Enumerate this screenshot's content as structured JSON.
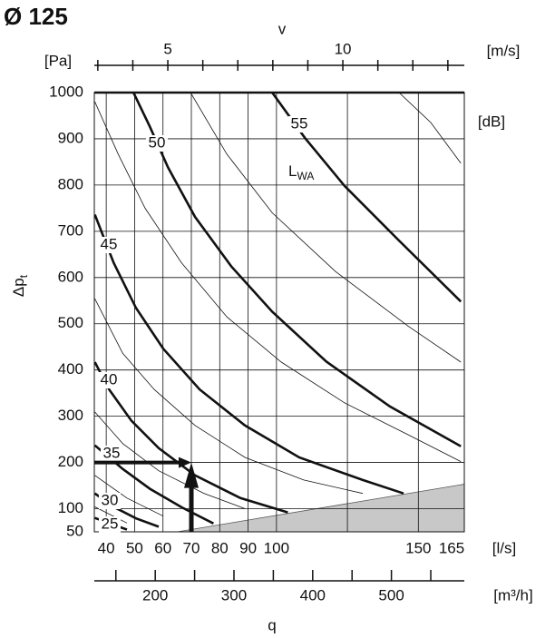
{
  "title": "Ø 125",
  "chart_data": {
    "type": "line",
    "y_unit": "[Pa]",
    "y_label": {
      "main": "Δp",
      "sub": "t"
    },
    "ylim": [
      50,
      1000
    ],
    "yticks": [
      50,
      100,
      200,
      300,
      400,
      500,
      600,
      700,
      800,
      900,
      1000
    ],
    "x_unit": "[l/s]",
    "xlim": [
      35.8,
      166.2
    ],
    "xticks": [
      40,
      50,
      60,
      70,
      80,
      90,
      100,
      150,
      165
    ],
    "x_grid": [
      40,
      50,
      60,
      70,
      80,
      90,
      100,
      125,
      150
    ],
    "grid": true,
    "top_axis": {
      "label": "v",
      "unit": "[m/s]",
      "xlim": [
        2.9,
        13.47
      ],
      "ticks": [
        3,
        4,
        5,
        6,
        7,
        8,
        9,
        10,
        11,
        12,
        13
      ],
      "tick_labels": [
        5,
        10
      ]
    },
    "bottom_axis2": {
      "label": "q",
      "unit": "[m³/h]",
      "xlim": [
        122.6,
        592.6
      ],
      "ticks": [
        150,
        200,
        250,
        300,
        350,
        400,
        450,
        500,
        550
      ],
      "tick_labels": [
        200,
        300,
        400,
        500
      ]
    },
    "series_unit": "[dB]",
    "series_label": {
      "main": "L",
      "sub": "WA"
    },
    "color": "#111111",
    "series": [
      {
        "name": "25",
        "x": [
          36,
          42.6,
          47.3
        ],
        "y": [
          80,
          65,
          55
        ]
      },
      {
        "name": "30",
        "x": [
          36,
          42.6,
          50.5,
          58.5
        ],
        "y": [
          133,
          104,
          79,
          61
        ]
      },
      {
        "name": "35",
        "x": [
          36,
          45.8,
          55.4,
          66.6,
          77.8
        ],
        "y": [
          237,
          186,
          143,
          103,
          68
        ]
      },
      {
        "name": "40",
        "x": [
          36,
          41,
          48.9,
          58.5,
          71.3,
          87.3,
          104
        ],
        "y": [
          417,
          358,
          290,
          231,
          172,
          123,
          92
        ]
      },
      {
        "name": "45",
        "x": [
          36,
          42.6,
          50.5,
          60.1,
          72.9,
          88.9,
          108,
          130.4,
          144.8
        ],
        "y": [
          736,
          632,
          534,
          446,
          358,
          280,
          211,
          162,
          133
        ]
      },
      {
        "name": "50",
        "x": [
          49.6,
          55.4,
          61.8,
          71.3,
          84.1,
          98.5,
          117.6,
          140,
          165
        ],
        "y": [
          1000,
          926,
          838,
          731,
          624,
          526,
          418,
          321,
          235
        ]
      },
      {
        "name": "55",
        "x": [
          98.5,
          110,
          124,
          143,
          165
        ],
        "y": [
          1000,
          902,
          798,
          681,
          548
        ]
      }
    ],
    "minor_curves": [
      {
        "x": [
          36,
          47.3
        ],
        "y": [
          104,
          69
        ]
      },
      {
        "x": [
          36,
          47.3,
          60.1
        ],
        "y": [
          172,
          123,
          84
        ]
      },
      {
        "x": [
          36,
          45.8,
          58.5,
          74.5,
          88.9
        ],
        "y": [
          309,
          241,
          182,
          133,
          100
        ]
      },
      {
        "x": [
          36,
          45.8,
          56.9,
          71.3,
          88.9,
          109.6,
          130.4
        ],
        "y": [
          554,
          436,
          358,
          280,
          211,
          162,
          133
        ]
      },
      {
        "x": [
          36,
          44.2,
          53.7,
          66.5,
          82.5,
          101.7,
          124,
          146.4,
          165
        ],
        "y": [
          980,
          867,
          750,
          632,
          515,
          417,
          329,
          260,
          202
        ]
      },
      {
        "x": [
          69.7,
          82.5,
          98.5,
          120.8,
          146.4,
          165
        ],
        "y": [
          1000,
          867,
          740,
          613,
          495,
          417
        ]
      },
      {
        "x": [
          143.2,
          154.4,
          165
        ],
        "y": [
          1000,
          935,
          847
        ]
      }
    ],
    "shaded_region": {
      "x": [
        65,
        166.2
      ],
      "y": [
        50,
        153
      ],
      "color": "#c8c8c8"
    },
    "operating_point": {
      "x": 70,
      "y": 200
    }
  }
}
